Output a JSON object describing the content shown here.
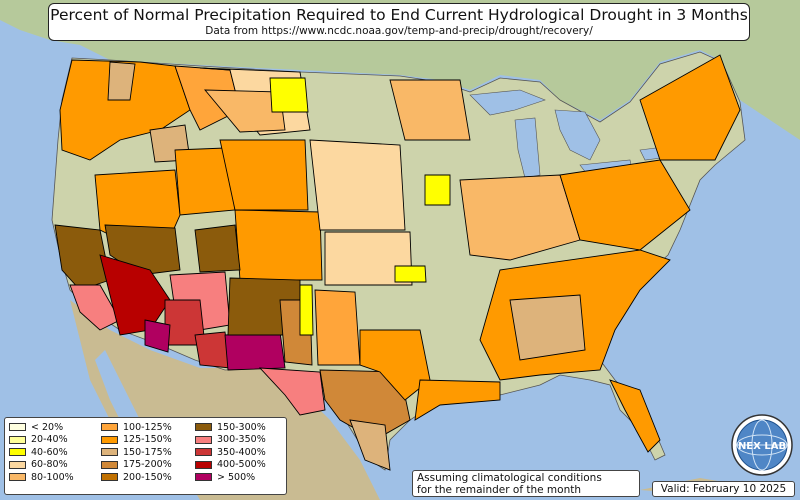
{
  "title": "Percent of Normal Precipitation Required to End Current Hydrological Drought in 3 Months",
  "subtitle": "Data from https://www.ncdc.noaa.gov/temp-and-precip/drought/recovery/",
  "legend": {
    "items": [
      {
        "label": "< 20%",
        "color": "#ffffe0"
      },
      {
        "label": "20-40%",
        "color": "#ffff99"
      },
      {
        "label": "40-60%",
        "color": "#ffff00"
      },
      {
        "label": "60-80%",
        "color": "#fcd8a0"
      },
      {
        "label": "80-100%",
        "color": "#f9b867"
      },
      {
        "label": "100-125%",
        "color": "#ffa53a"
      },
      {
        "label": "125-150%",
        "color": "#ff9a00"
      },
      {
        "label": "150-175%",
        "color": "#ddb37b"
      },
      {
        "label": "175-200%",
        "color": "#d08838"
      },
      {
        "label": "200-150%",
        "color": "#c07000"
      },
      {
        "label": "150-300%",
        "color": "#8b5b0c"
      },
      {
        "label": "300-350%",
        "color": "#f77f7f"
      },
      {
        "label": "350-400%",
        "color": "#cc3636"
      },
      {
        "label": "400-500%",
        "color": "#b80000"
      },
      {
        "label": "> 500%",
        "color": "#b00060"
      }
    ]
  },
  "note": {
    "line1": "Assuming climatological conditions",
    "line2": "for the remainder of the month"
  },
  "valid": "Valid: February 10 2025",
  "logo": {
    "text": "NEX LAB",
    "icon": "globe-icon"
  },
  "colors": {
    "ocean": "#9fc0e6",
    "land": "#c9d2a8",
    "mexico": "#c6b88e",
    "canada": "#b4c89a"
  }
}
